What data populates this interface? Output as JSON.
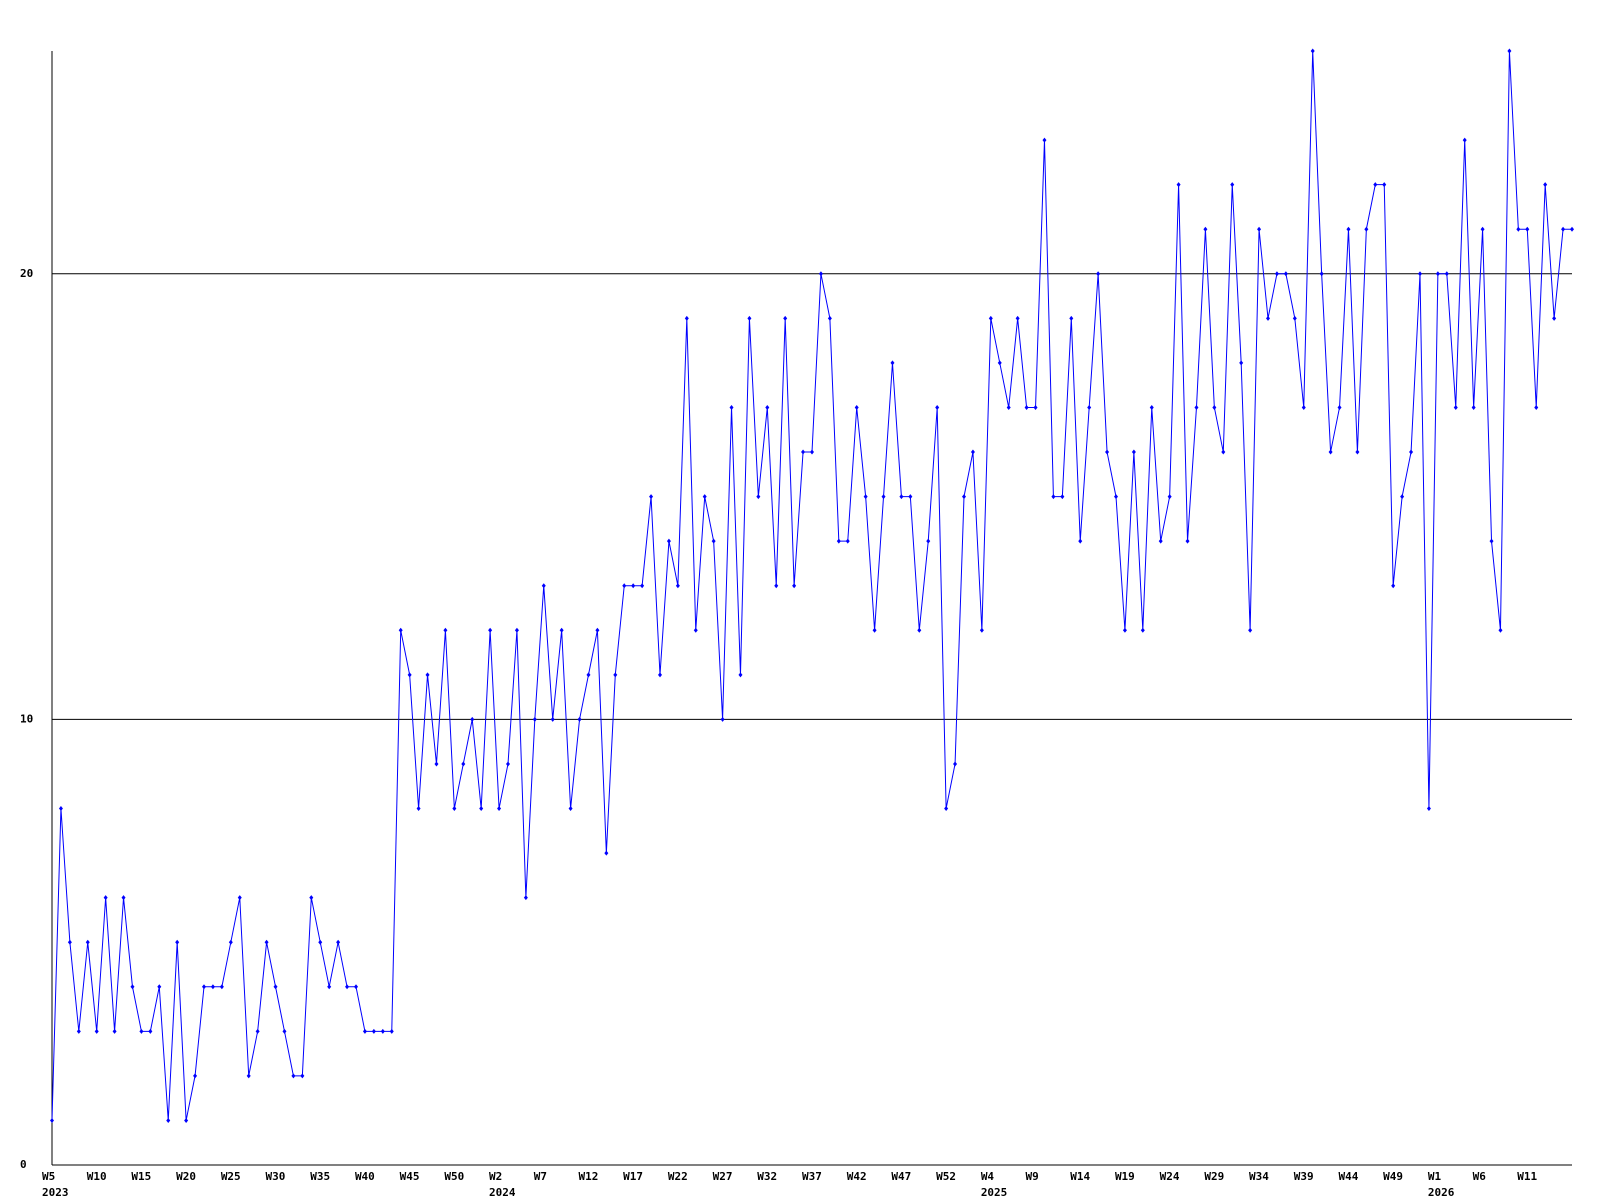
{
  "chart_data": {
    "type": "line",
    "ylim": [
      0,
      25
    ],
    "yticks": [
      0,
      10,
      20
    ],
    "grid": true,
    "categories": [
      "W5",
      null,
      null,
      null,
      null,
      "W10",
      null,
      null,
      null,
      null,
      "W15",
      null,
      null,
      null,
      null,
      "W20",
      null,
      null,
      null,
      null,
      "W25",
      null,
      null,
      null,
      null,
      "W30",
      null,
      null,
      null,
      null,
      "W35",
      null,
      null,
      null,
      null,
      "W40",
      null,
      null,
      null,
      null,
      "W45",
      null,
      null,
      null,
      null,
      "W50",
      null,
      null,
      null,
      null,
      "W2",
      null,
      null,
      null,
      null,
      "W7",
      null,
      null,
      null,
      null,
      "W12",
      null,
      null,
      null,
      null,
      "W17",
      null,
      null,
      null,
      null,
      "W22",
      null,
      null,
      null,
      null,
      "W27",
      null,
      null,
      null,
      null,
      "W32",
      null,
      null,
      null,
      null,
      "W37",
      null,
      null,
      null,
      null,
      "W42",
      null,
      null,
      null,
      null,
      "W47",
      null,
      null,
      null,
      null,
      "W52",
      null,
      null,
      null,
      null,
      "W4",
      null,
      null,
      null,
      null,
      "W9",
      null,
      null,
      null,
      null,
      "W14",
      null,
      null,
      null,
      null,
      "W19",
      null,
      null,
      null,
      null,
      "W24",
      null,
      null,
      null,
      null,
      "W29",
      null,
      null,
      null,
      null,
      "W34",
      null,
      null,
      null,
      null,
      "W39",
      null,
      null,
      null,
      null,
      "W44",
      null,
      null,
      null,
      null,
      "W49",
      null,
      null,
      null,
      null,
      "W1",
      null,
      null,
      null,
      null,
      "W6",
      null,
      null,
      null,
      null,
      "W11",
      null,
      null,
      null,
      null,
      null
    ],
    "category_years": [
      "2023",
      null,
      null,
      null,
      null,
      null,
      null,
      null,
      null,
      null,
      null,
      null,
      null,
      null,
      null,
      null,
      null,
      null,
      null,
      null,
      null,
      null,
      null,
      null,
      null,
      null,
      null,
      null,
      null,
      null,
      null,
      null,
      null,
      null,
      null,
      null,
      null,
      null,
      null,
      null,
      null,
      null,
      null,
      null,
      null,
      null,
      null,
      null,
      null,
      null,
      "2024",
      null,
      null,
      null,
      null,
      null,
      null,
      null,
      null,
      null,
      null,
      null,
      null,
      null,
      null,
      null,
      null,
      null,
      null,
      null,
      null,
      null,
      null,
      null,
      null,
      null,
      null,
      null,
      null,
      null,
      null,
      null,
      null,
      null,
      null,
      null,
      null,
      null,
      null,
      null,
      null,
      null,
      null,
      null,
      null,
      null,
      null,
      null,
      null,
      null,
      null,
      null,
      null,
      null,
      null,
      "2025",
      null,
      null,
      null,
      null,
      null,
      null,
      null,
      null,
      null,
      null,
      null,
      null,
      null,
      null,
      null,
      null,
      null,
      null,
      null,
      null,
      null,
      null,
      null,
      null,
      null,
      null,
      null,
      null,
      null,
      null,
      null,
      null,
      null,
      null,
      null,
      null,
      null,
      null,
      null,
      null,
      null,
      null,
      null,
      null,
      null,
      null,
      null,
      null,
      null,
      "2026",
      null,
      null,
      null,
      null,
      null,
      null,
      null,
      null,
      null,
      null,
      null,
      null,
      null,
      null,
      null
    ],
    "series": [
      {
        "color": "#0000ff",
        "values": [
          1,
          8,
          5,
          3,
          5,
          3,
          6,
          3,
          6,
          4,
          3,
          3,
          4,
          1,
          5,
          1,
          2,
          4,
          4,
          4,
          5,
          6,
          2,
          3,
          5,
          4,
          3,
          2,
          2,
          6,
          5,
          4,
          5,
          4,
          4,
          3,
          3,
          3,
          3,
          12,
          11,
          8,
          11,
          9,
          12,
          8,
          9,
          10,
          8,
          12,
          8,
          9,
          12,
          6,
          10,
          13,
          10,
          12,
          8,
          10,
          11,
          12,
          7,
          11,
          13,
          13,
          13,
          15,
          11,
          14,
          13,
          19,
          12,
          15,
          14,
          10,
          17,
          11,
          19,
          15,
          17,
          13,
          19,
          13,
          16,
          16,
          20,
          19,
          14,
          14,
          17,
          15,
          12,
          15,
          18,
          15,
          15,
          12,
          14,
          17,
          8,
          9,
          15,
          16,
          12,
          19,
          18,
          17,
          19,
          17,
          17,
          23,
          15,
          15,
          19,
          14,
          17,
          20,
          16,
          15,
          12,
          16,
          12,
          17,
          14,
          15,
          22,
          14,
          17,
          21,
          17,
          16,
          22,
          18,
          12,
          21,
          19,
          20,
          20,
          19,
          17,
          25,
          20,
          16,
          17,
          21,
          16,
          21,
          22,
          22,
          13,
          15,
          16,
          20,
          8,
          20,
          20,
          17,
          23,
          17,
          21,
          14,
          12,
          25,
          21,
          21,
          17,
          22,
          19,
          21,
          21
        ]
      }
    ]
  }
}
